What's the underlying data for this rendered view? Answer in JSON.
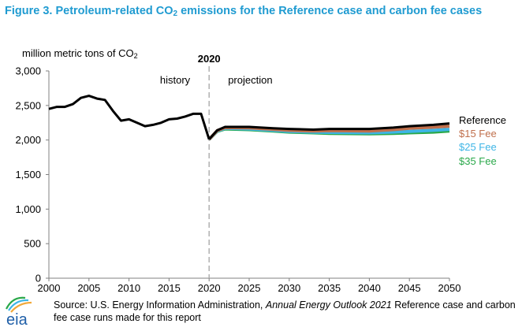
{
  "figure": {
    "title_prefix": "Figure 3. Petroleum-related CO",
    "title_sub": "2",
    "title_suffix": " emissions for the Reference case and carbon fee cases"
  },
  "source": {
    "prefix": "Source: U.S. Energy Information Administration, ",
    "italic": "Annual Energy Outlook 2021",
    "suffix": " Reference case and carbon fee case runs made for this report"
  },
  "logo": {
    "text": "eia"
  },
  "chart_data": {
    "type": "line",
    "ylabel_prefix": "million metric tons of CO",
    "ylabel_sub": "2",
    "xlim": [
      2000,
      2050
    ],
    "ylim": [
      0,
      3000
    ],
    "xticks": [
      2000,
      2005,
      2010,
      2015,
      2020,
      2025,
      2030,
      2035,
      2040,
      2045,
      2050
    ],
    "yticks": [
      0,
      500,
      1000,
      1500,
      2000,
      2500,
      3000
    ],
    "ytick_labels": [
      "0",
      "500",
      "1,000",
      "1,500",
      "2,000",
      "2,500",
      "3,000"
    ],
    "grid": false,
    "divider": {
      "x": 2020,
      "label": "2020"
    },
    "annotations": {
      "history": "history",
      "projection": "projection"
    },
    "legend_position": "right",
    "history": {
      "x": [
        2000,
        2001,
        2002,
        2003,
        2004,
        2005,
        2006,
        2007,
        2008,
        2009,
        2010,
        2011,
        2012,
        2013,
        2014,
        2015,
        2016,
        2017,
        2018,
        2019,
        2020
      ],
      "values": [
        2450,
        2480,
        2480,
        2520,
        2610,
        2640,
        2600,
        2580,
        2420,
        2280,
        2300,
        2250,
        2200,
        2220,
        2250,
        2300,
        2310,
        2340,
        2380,
        2380,
        2010
      ]
    },
    "series": [
      {
        "name": "Reference",
        "color": "#000000",
        "x": [
          2020,
          2021,
          2022,
          2025,
          2028,
          2030,
          2033,
          2035,
          2040,
          2043,
          2045,
          2048,
          2050
        ],
        "values": [
          2010,
          2140,
          2190,
          2190,
          2170,
          2160,
          2150,
          2160,
          2160,
          2180,
          2200,
          2220,
          2240
        ]
      },
      {
        "name": "$15 Fee",
        "color": "#c0704d",
        "x": [
          2020,
          2021,
          2022,
          2025,
          2028,
          2030,
          2033,
          2035,
          2040,
          2043,
          2045,
          2048,
          2050
        ],
        "values": [
          2010,
          2135,
          2180,
          2175,
          2155,
          2140,
          2130,
          2135,
          2130,
          2150,
          2170,
          2185,
          2200
        ]
      },
      {
        "name": "$25 Fee",
        "color": "#3eb5e6",
        "x": [
          2020,
          2021,
          2022,
          2025,
          2028,
          2030,
          2033,
          2035,
          2040,
          2043,
          2045,
          2048,
          2050
        ],
        "values": [
          2010,
          2130,
          2170,
          2160,
          2140,
          2125,
          2115,
          2110,
          2105,
          2115,
          2125,
          2140,
          2155
        ]
      },
      {
        "name": "$35 Fee",
        "color": "#2aa84a",
        "x": [
          2020,
          2021,
          2022,
          2025,
          2028,
          2030,
          2033,
          2035,
          2040,
          2043,
          2045,
          2048,
          2050
        ],
        "values": [
          2010,
          2125,
          2160,
          2150,
          2130,
          2115,
          2105,
          2095,
          2090,
          2095,
          2105,
          2115,
          2130
        ]
      }
    ]
  }
}
